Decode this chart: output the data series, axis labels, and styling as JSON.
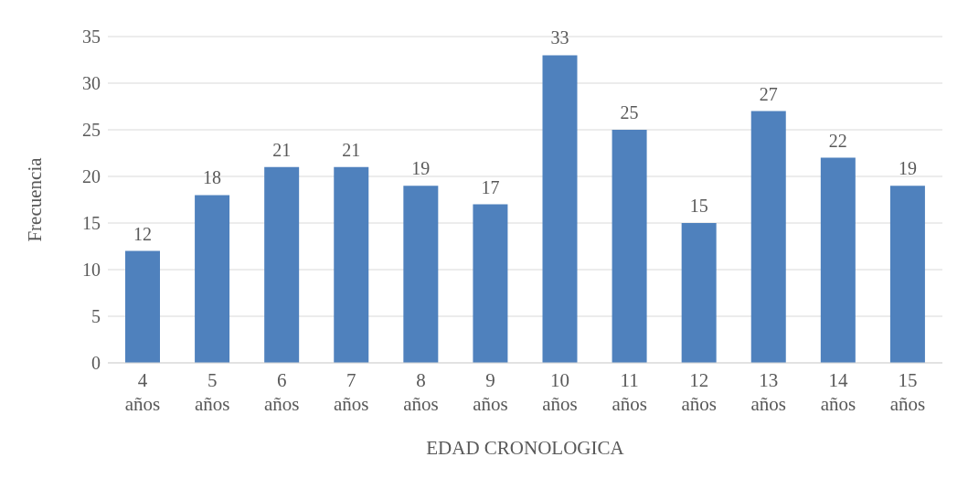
{
  "chart_data": {
    "type": "bar",
    "xlabel": "EDAD CRONOLOGICA",
    "ylabel": "Frecuencia",
    "categories": [
      "4 años",
      "5 años",
      "6 años",
      "7 años",
      "8 años",
      "9 años",
      "10 años",
      "11 años",
      "12 años",
      "13 años",
      "14 años",
      "15 años"
    ],
    "values": [
      12,
      18,
      21,
      21,
      19,
      17,
      33,
      25,
      15,
      27,
      22,
      19
    ],
    "color": "#4f81bd",
    "ylim": [
      0,
      35
    ],
    "yticks": [
      0,
      5,
      10,
      15,
      20,
      25,
      30,
      35
    ],
    "grid": "y",
    "data_labels": true
  }
}
